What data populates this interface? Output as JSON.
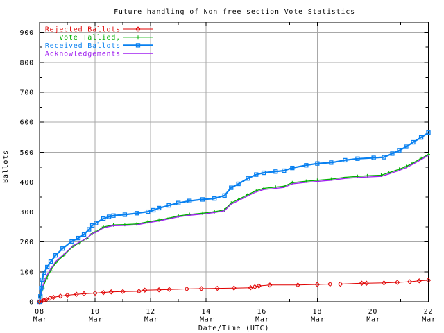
{
  "chart_data": {
    "type": "line",
    "title": "Future handling of Non free section Vote Statistics",
    "xlabel": "Date/Time (UTC)",
    "ylabel": "Ballots",
    "grid": true,
    "legend_position": "top-left",
    "colors": {
      "background": "#ffffff",
      "grid": "#a8a8a8",
      "axis": "#000000"
    },
    "x_axis": {
      "unit": "day of March",
      "range": [
        8,
        22
      ],
      "major_tick_days": [
        8,
        10,
        12,
        14,
        16,
        18,
        20,
        22
      ],
      "tick_labels": [
        [
          "08",
          "Mar"
        ],
        [
          "10",
          "Mar"
        ],
        [
          "12",
          "Mar"
        ],
        [
          "14",
          "Mar"
        ],
        [
          "16",
          "Mar"
        ],
        [
          "18",
          "Mar"
        ],
        [
          "20",
          "Mar"
        ],
        [
          "22",
          "Mar"
        ]
      ],
      "minor_tick_every_days": 1,
      "grid_every_days": 2
    },
    "y_axis": {
      "range": [
        0,
        934
      ],
      "major_ticks": [
        0,
        100,
        200,
        300,
        400,
        500,
        600,
        700,
        800,
        900
      ],
      "minor_tick_every": 50
    },
    "series": [
      {
        "name": "Rejected Ballots",
        "color": "#e00000",
        "marker": "diamond",
        "z": 4,
        "points": [
          [
            8.0,
            0
          ],
          [
            8.1,
            3
          ],
          [
            8.16,
            5
          ],
          [
            8.25,
            8
          ],
          [
            8.37,
            12
          ],
          [
            8.5,
            15
          ],
          [
            8.75,
            19
          ],
          [
            9.0,
            22
          ],
          [
            9.33,
            25
          ],
          [
            9.6,
            27
          ],
          [
            10.0,
            29
          ],
          [
            10.3,
            31
          ],
          [
            10.58,
            33
          ],
          [
            11.0,
            34
          ],
          [
            11.58,
            35
          ],
          [
            11.79,
            39
          ],
          [
            12.3,
            40
          ],
          [
            12.67,
            41
          ],
          [
            13.3,
            43
          ],
          [
            13.83,
            44
          ],
          [
            14.4,
            45
          ],
          [
            15.0,
            46
          ],
          [
            15.6,
            47
          ],
          [
            15.75,
            50
          ],
          [
            15.9,
            53
          ],
          [
            16.29,
            56
          ],
          [
            17.3,
            56
          ],
          [
            18.0,
            58
          ],
          [
            18.46,
            59
          ],
          [
            18.83,
            59
          ],
          [
            19.6,
            62
          ],
          [
            19.77,
            62
          ],
          [
            20.4,
            63
          ],
          [
            20.88,
            65
          ],
          [
            21.33,
            67
          ],
          [
            21.67,
            70
          ],
          [
            22.0,
            72
          ]
        ]
      },
      {
        "name": "Vote Tallied,",
        "color": "#00b000",
        "marker": "plus",
        "z": 1,
        "points": [
          [
            8.0,
            0
          ],
          [
            8.05,
            20
          ],
          [
            8.12,
            46
          ],
          [
            8.24,
            77
          ],
          [
            8.4,
            104
          ],
          [
            8.6,
            132
          ],
          [
            8.87,
            155
          ],
          [
            9.2,
            185
          ],
          [
            9.43,
            197
          ],
          [
            9.7,
            212
          ],
          [
            9.9,
            228
          ],
          [
            10.03,
            234
          ],
          [
            10.3,
            250
          ],
          [
            10.66,
            257
          ],
          [
            11.07,
            258
          ],
          [
            11.5,
            260
          ],
          [
            11.9,
            267
          ],
          [
            12.3,
            273
          ],
          [
            12.66,
            280
          ],
          [
            13.0,
            287
          ],
          [
            13.4,
            292
          ],
          [
            13.87,
            296
          ],
          [
            14.3,
            301
          ],
          [
            14.66,
            307
          ],
          [
            14.9,
            330
          ],
          [
            15.16,
            342
          ],
          [
            15.5,
            358
          ],
          [
            15.8,
            371
          ],
          [
            16.07,
            379
          ],
          [
            16.5,
            383
          ],
          [
            16.8,
            386
          ],
          [
            17.1,
            398
          ],
          [
            17.6,
            403
          ],
          [
            18.0,
            406
          ],
          [
            18.5,
            410
          ],
          [
            19.0,
            416
          ],
          [
            19.45,
            419
          ],
          [
            19.8,
            421
          ],
          [
            20.3,
            423
          ],
          [
            20.58,
            431
          ],
          [
            20.95,
            443
          ],
          [
            21.2,
            452
          ],
          [
            21.45,
            464
          ],
          [
            21.74,
            479
          ],
          [
            22.0,
            492
          ]
        ]
      },
      {
        "name": "Received Ballots",
        "color": "#0880f0",
        "marker": "square",
        "z": 3,
        "points": [
          [
            8.0,
            0
          ],
          [
            8.03,
            18
          ],
          [
            8.06,
            46
          ],
          [
            8.09,
            74
          ],
          [
            8.16,
            97
          ],
          [
            8.28,
            116
          ],
          [
            8.4,
            134
          ],
          [
            8.58,
            155
          ],
          [
            8.83,
            178
          ],
          [
            9.16,
            202
          ],
          [
            9.4,
            213
          ],
          [
            9.6,
            225
          ],
          [
            9.78,
            242
          ],
          [
            9.9,
            255
          ],
          [
            10.03,
            263
          ],
          [
            10.3,
            278
          ],
          [
            10.5,
            284
          ],
          [
            10.66,
            288
          ],
          [
            11.07,
            291
          ],
          [
            11.5,
            296
          ],
          [
            11.9,
            301
          ],
          [
            12.1,
            306
          ],
          [
            12.3,
            313
          ],
          [
            12.66,
            322
          ],
          [
            13.0,
            330
          ],
          [
            13.4,
            337
          ],
          [
            13.87,
            342
          ],
          [
            14.3,
            345
          ],
          [
            14.66,
            355
          ],
          [
            14.9,
            381
          ],
          [
            15.16,
            394
          ],
          [
            15.5,
            412
          ],
          [
            15.8,
            425
          ],
          [
            16.07,
            431
          ],
          [
            16.5,
            435
          ],
          [
            16.8,
            438
          ],
          [
            17.1,
            447
          ],
          [
            17.6,
            456
          ],
          [
            18.0,
            462
          ],
          [
            18.5,
            465
          ],
          [
            19.0,
            473
          ],
          [
            19.45,
            478
          ],
          [
            20.03,
            481
          ],
          [
            20.4,
            483
          ],
          [
            20.7,
            495
          ],
          [
            20.95,
            506
          ],
          [
            21.2,
            518
          ],
          [
            21.45,
            533
          ],
          [
            21.74,
            549
          ],
          [
            22.0,
            565
          ]
        ]
      },
      {
        "name": "Acknowledgements",
        "color": "#a020f0",
        "marker": "none",
        "z": 2,
        "points": [
          [
            8.0,
            0
          ],
          [
            8.05,
            24
          ],
          [
            8.12,
            54
          ],
          [
            8.24,
            84
          ],
          [
            8.4,
            110
          ],
          [
            8.6,
            136
          ],
          [
            8.87,
            158
          ],
          [
            9.2,
            187
          ],
          [
            9.43,
            199
          ],
          [
            9.7,
            213
          ],
          [
            9.9,
            228
          ],
          [
            10.03,
            232
          ],
          [
            10.3,
            247
          ],
          [
            10.66,
            254
          ],
          [
            11.07,
            255
          ],
          [
            11.5,
            257
          ],
          [
            11.9,
            264
          ],
          [
            12.3,
            270
          ],
          [
            12.66,
            277
          ],
          [
            13.0,
            284
          ],
          [
            13.4,
            289
          ],
          [
            13.87,
            293
          ],
          [
            14.3,
            298
          ],
          [
            14.66,
            304
          ],
          [
            14.9,
            326
          ],
          [
            15.16,
            338
          ],
          [
            15.5,
            354
          ],
          [
            15.8,
            367
          ],
          [
            16.07,
            375
          ],
          [
            16.5,
            379
          ],
          [
            16.8,
            382
          ],
          [
            17.1,
            394
          ],
          [
            17.6,
            399
          ],
          [
            18.0,
            402
          ],
          [
            18.5,
            406
          ],
          [
            19.0,
            412
          ],
          [
            19.45,
            415
          ],
          [
            19.8,
            417
          ],
          [
            20.3,
            419
          ],
          [
            20.58,
            427
          ],
          [
            20.95,
            439
          ],
          [
            21.2,
            448
          ],
          [
            21.45,
            460
          ],
          [
            21.74,
            475
          ],
          [
            22.0,
            489
          ]
        ]
      }
    ]
  }
}
